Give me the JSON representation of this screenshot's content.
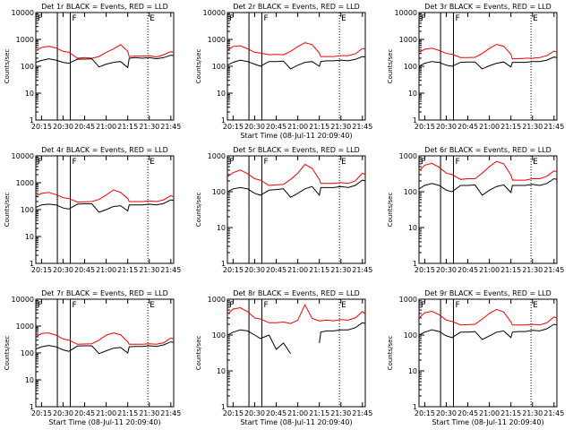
{
  "figure": {
    "background": "#ffffff",
    "axis_color": "#000000",
    "events_color": "#000000",
    "lld_color": "#ee0000"
  },
  "chart_data": [
    {
      "type": "line",
      "title": "Det 1r BLACK = Events, RED = LLD",
      "xlabel": "",
      "ylabel": "Counts/sec",
      "yscale": "log",
      "ylim": [
        1,
        10000
      ],
      "xlim": [
        "20:11",
        "21:47"
      ],
      "x_ticks": [
        "20:15",
        "20:30",
        "20:45",
        "21:00",
        "21:15",
        "21:30",
        "21:45"
      ],
      "y_ticks": [
        "1",
        "10",
        "100",
        "1000",
        "10000"
      ],
      "flags": [
        "F",
        "E"
      ],
      "x": [
        "20:11",
        "20:15",
        "20:20",
        "20:25",
        "20:30",
        "20:34",
        "20:40",
        "20:45",
        "20:50",
        "20:55",
        "21:00",
        "21:05",
        "21:10",
        "21:15",
        "21:16",
        "21:20",
        "21:25",
        "21:30",
        "21:35",
        "21:40",
        "21:45",
        "21:47"
      ],
      "series": [
        {
          "name": "RED = LLD",
          "values": [
            380,
            500,
            560,
            480,
            360,
            330,
            200,
            210,
            200,
            230,
            330,
            440,
            640,
            360,
            230,
            240,
            240,
            250,
            220,
            270,
            350,
            330
          ]
        },
        {
          "name": "BLACK = Events",
          "values": [
            140,
            165,
            190,
            170,
            140,
            130,
            185,
            185,
            190,
            95,
            120,
            140,
            150,
            90,
            200,
            210,
            200,
            210,
            190,
            210,
            260,
            250
          ]
        }
      ],
      "vlines_solid": [
        "20:26",
        "20:35"
      ],
      "vlines_dotted": [
        "20:26",
        "21:29"
      ]
    },
    {
      "type": "line",
      "title": "Det 2r BLACK = Events, RED = LLD",
      "xlabel": "Start Time (08-Jul-11 20:09:40)",
      "ylabel": "Counts/sec",
      "yscale": "log",
      "ylim": [
        1,
        10000
      ],
      "xlim": [
        "20:11",
        "21:47"
      ],
      "x_ticks": [
        "20:15",
        "20:30",
        "20:45",
        "21:00",
        "21:15",
        "21:30",
        "21:45"
      ],
      "y_ticks": [
        "1",
        "10",
        "100",
        "1000",
        "10000"
      ],
      "flags": [
        "F",
        "E"
      ],
      "x": [
        "20:11",
        "20:15",
        "20:20",
        "20:25",
        "20:30",
        "20:34",
        "20:40",
        "20:45",
        "20:50",
        "20:55",
        "21:00",
        "21:05",
        "21:10",
        "21:15",
        "21:16",
        "21:20",
        "21:25",
        "21:30",
        "21:35",
        "21:40",
        "21:45",
        "21:47"
      ],
      "series": [
        {
          "name": "RED = LLD",
          "values": [
            400,
            550,
            580,
            450,
            330,
            310,
            270,
            275,
            270,
            360,
            540,
            750,
            640,
            310,
            230,
            230,
            230,
            250,
            250,
            290,
            460,
            440
          ]
        },
        {
          "name": "BLACK = Events",
          "values": [
            110,
            140,
            170,
            150,
            120,
            100,
            150,
            150,
            155,
            80,
            110,
            140,
            150,
            100,
            150,
            160,
            160,
            170,
            160,
            180,
            230,
            220
          ]
        }
      ],
      "vlines_solid": [
        "20:26",
        "20:35"
      ],
      "vlines_dotted": [
        "20:26",
        "21:29"
      ]
    },
    {
      "type": "line",
      "title": "Det 3r BLACK = Events, RED = LLD",
      "xlabel": "",
      "ylabel": "Counts/sec",
      "yscale": "log",
      "ylim": [
        1,
        10000
      ],
      "xlim": [
        "20:11",
        "21:47"
      ],
      "x_ticks": [
        "20:15",
        "20:30",
        "20:45",
        "21:00",
        "21:15",
        "21:30",
        "21:45"
      ],
      "y_ticks": [
        "1",
        "10",
        "100",
        "1000",
        "10000"
      ],
      "flags": [
        "F",
        "E"
      ],
      "x": [
        "20:11",
        "20:15",
        "20:20",
        "20:25",
        "20:30",
        "20:34",
        "20:40",
        "20:45",
        "20:50",
        "20:55",
        "21:00",
        "21:05",
        "21:10",
        "21:15",
        "21:16",
        "21:20",
        "21:25",
        "21:30",
        "21:35",
        "21:40",
        "21:45",
        "21:47"
      ],
      "series": [
        {
          "name": "RED = LLD",
          "values": [
            330,
            430,
            470,
            390,
            300,
            280,
            210,
            210,
            215,
            300,
            460,
            650,
            560,
            280,
            190,
            190,
            200,
            200,
            210,
            250,
            370,
            340
          ]
        },
        {
          "name": "BLACK = Events",
          "values": [
            100,
            130,
            150,
            140,
            110,
            100,
            140,
            145,
            145,
            80,
            105,
            130,
            145,
            95,
            140,
            140,
            140,
            150,
            150,
            170,
            220,
            210
          ]
        }
      ],
      "vlines_solid": [
        "20:26",
        "20:35"
      ],
      "vlines_dotted": [
        "20:26",
        "21:29"
      ]
    },
    {
      "type": "line",
      "title": "Det 4r BLACK = Events, RED = LLD",
      "xlabel": "",
      "ylabel": "Counts/sec",
      "yscale": "log",
      "ylim": [
        1,
        10000
      ],
      "xlim": [
        "20:11",
        "21:47"
      ],
      "x_ticks": [
        "20:15",
        "20:30",
        "20:45",
        "21:00",
        "21:15",
        "21:30",
        "21:45"
      ],
      "y_ticks": [
        "1",
        "10",
        "100",
        "1000",
        "10000"
      ],
      "flags": [
        "F",
        "E"
      ],
      "x": [
        "20:11",
        "20:15",
        "20:20",
        "20:25",
        "20:30",
        "20:34",
        "20:40",
        "20:45",
        "20:50",
        "20:55",
        "21:00",
        "21:05",
        "21:10",
        "21:15",
        "21:16",
        "21:20",
        "21:25",
        "21:30",
        "21:35",
        "21:40",
        "21:45",
        "21:47"
      ],
      "series": [
        {
          "name": "RED = LLD",
          "values": [
            320,
            400,
            440,
            360,
            280,
            260,
            190,
            195,
            200,
            240,
            350,
            540,
            440,
            260,
            200,
            200,
            200,
            210,
            200,
            230,
            330,
            300
          ]
        },
        {
          "name": "BLACK = Events",
          "values": [
            120,
            150,
            160,
            150,
            115,
            105,
            160,
            165,
            165,
            80,
            100,
            130,
            140,
            90,
            150,
            150,
            150,
            160,
            150,
            170,
            230,
            220
          ]
        }
      ],
      "vlines_solid": [
        "20:26",
        "20:35"
      ],
      "vlines_dotted": [
        "20:26",
        "21:29"
      ]
    },
    {
      "type": "line",
      "title": "Det 5r BLACK = Events, RED = LLD",
      "xlabel": "",
      "ylabel": "Counts/sec",
      "yscale": "log",
      "ylim": [
        1,
        1000
      ],
      "xlim": [
        "20:11",
        "21:47"
      ],
      "x_ticks": [
        "20:15",
        "20:30",
        "20:45",
        "21:00",
        "21:15",
        "21:30",
        "21:45"
      ],
      "y_ticks": [
        "1",
        "10",
        "100",
        "1000"
      ],
      "flags": [
        "F",
        "E"
      ],
      "x": [
        "20:11",
        "20:15",
        "20:20",
        "20:25",
        "20:30",
        "20:34",
        "20:40",
        "20:45",
        "20:50",
        "20:55",
        "21:00",
        "21:05",
        "21:10",
        "21:15",
        "21:16",
        "21:20",
        "21:25",
        "21:30",
        "21:35",
        "21:40",
        "21:45",
        "21:47"
      ],
      "series": [
        {
          "name": "RED = LLD",
          "values": [
            260,
            340,
            400,
            320,
            230,
            210,
            150,
            155,
            160,
            220,
            330,
            580,
            450,
            220,
            170,
            170,
            170,
            180,
            170,
            200,
            330,
            300
          ]
        },
        {
          "name": "BLACK = Events",
          "values": [
            100,
            120,
            130,
            120,
            90,
            80,
            110,
            115,
            120,
            70,
            90,
            120,
            140,
            80,
            130,
            130,
            130,
            140,
            130,
            150,
            210,
            200
          ]
        }
      ],
      "vlines_solid": [
        "20:26",
        "20:35"
      ],
      "vlines_dotted": [
        "20:26",
        "21:29"
      ]
    },
    {
      "type": "line",
      "title": "Det 6r BLACK = Events, RED = LLD",
      "xlabel": "",
      "ylabel": "Counts/sec",
      "yscale": "log",
      "ylim": [
        1,
        1000
      ],
      "xlim": [
        "20:11",
        "21:47"
      ],
      "x_ticks": [
        "20:15",
        "20:30",
        "20:45",
        "21:00",
        "21:15",
        "21:30",
        "21:45"
      ],
      "y_ticks": [
        "1",
        "10",
        "100",
        "1000"
      ],
      "flags": [
        "F",
        "E"
      ],
      "x": [
        "20:11",
        "20:15",
        "20:20",
        "20:25",
        "20:30",
        "20:34",
        "20:40",
        "20:45",
        "20:50",
        "20:55",
        "21:00",
        "21:05",
        "21:10",
        "21:15",
        "21:16",
        "21:20",
        "21:25",
        "21:30",
        "21:35",
        "21:40",
        "21:45",
        "21:47"
      ],
      "series": [
        {
          "name": "RED = LLD",
          "values": [
            380,
            550,
            620,
            480,
            330,
            300,
            220,
            230,
            230,
            330,
            500,
            700,
            600,
            290,
            210,
            210,
            210,
            230,
            230,
            270,
            380,
            360
          ]
        },
        {
          "name": "BLACK = Events",
          "values": [
            120,
            150,
            170,
            150,
            110,
            100,
            150,
            150,
            155,
            80,
            110,
            140,
            155,
            95,
            150,
            150,
            150,
            160,
            150,
            170,
            230,
            220
          ]
        }
      ],
      "vlines_solid": [
        "20:26",
        "20:35"
      ],
      "vlines_dotted": [
        "20:26",
        "21:29"
      ]
    },
    {
      "type": "line",
      "title": "Det 7r BLACK = Events, RED = LLD",
      "xlabel": "Start Time (08-Jul-11 20:09:40)",
      "ylabel": "Counts/sec",
      "yscale": "log",
      "ylim": [
        1,
        10000
      ],
      "xlim": [
        "20:11",
        "21:47"
      ],
      "x_ticks": [
        "20:15",
        "20:30",
        "20:45",
        "21:00",
        "21:15",
        "21:30",
        "21:45"
      ],
      "y_ticks": [
        "1",
        "10",
        "100",
        "1000",
        "10000"
      ],
      "flags": [
        "F",
        "E"
      ],
      "x": [
        "20:11",
        "20:15",
        "20:20",
        "20:25",
        "20:30",
        "20:34",
        "20:40",
        "20:45",
        "20:50",
        "20:55",
        "21:00",
        "21:05",
        "21:10",
        "21:15",
        "21:16",
        "21:20",
        "21:25",
        "21:30",
        "21:35",
        "21:40",
        "21:45",
        "21:47"
      ],
      "series": [
        {
          "name": "RED = LLD",
          "values": [
            400,
            530,
            560,
            460,
            330,
            300,
            210,
            215,
            220,
            300,
            460,
            560,
            480,
            260,
            210,
            210,
            210,
            220,
            210,
            240,
            360,
            330
          ]
        },
        {
          "name": "BLACK = Events",
          "values": [
            140,
            170,
            190,
            170,
            130,
            115,
            180,
            185,
            185,
            95,
            120,
            150,
            160,
            100,
            170,
            175,
            175,
            185,
            175,
            200,
            260,
            250
          ]
        }
      ],
      "vlines_solid": [
        "20:26",
        "20:35"
      ],
      "vlines_dotted": [
        "20:26",
        "21:29"
      ]
    },
    {
      "type": "line",
      "title": "Det 8r BLACK = Events, RED = LLD",
      "xlabel": "Start Time (08-Jul-11 20:09:40)",
      "ylabel": "Counts/sec",
      "yscale": "log",
      "ylim": [
        1,
        1000
      ],
      "xlim": [
        "20:11",
        "21:47"
      ],
      "x_ticks": [
        "20:15",
        "20:30",
        "20:45",
        "21:00",
        "21:15",
        "21:30",
        "21:45"
      ],
      "y_ticks": [
        "1",
        "10",
        "100",
        "1000"
      ],
      "flags": [
        "F",
        "E"
      ],
      "x": [
        "20:11",
        "20:15",
        "20:20",
        "20:25",
        "20:30",
        "20:34",
        "20:40",
        "20:45",
        "20:50",
        "20:55",
        "21:00",
        "21:05",
        "21:10",
        "21:15",
        "21:16",
        "21:20",
        "21:25",
        "21:30",
        "21:35",
        "21:40",
        "21:45",
        "21:47"
      ],
      "series": [
        {
          "name": "RED = LLD",
          "values": [
            380,
            530,
            580,
            450,
            300,
            280,
            220,
            220,
            230,
            210,
            260,
            700,
            290,
            250,
            250,
            260,
            250,
            270,
            260,
            300,
            450,
            400
          ]
        },
        {
          "name": "BLACK = Events",
          "values": [
            100,
            120,
            140,
            130,
            100,
            80,
            100,
            40,
            60,
            30,
            null,
            null,
            null,
            60,
            120,
            130,
            130,
            140,
            140,
            160,
            220,
            210
          ]
        }
      ],
      "vlines_solid": [
        "20:26",
        "20:35"
      ],
      "vlines_dotted": [
        "20:26",
        "21:29"
      ]
    },
    {
      "type": "line",
      "title": "Det 9r BLACK = Events, RED = LLD",
      "xlabel": "Start Time (08-Jul-11 20:09:40)",
      "ylabel": "Counts/sec",
      "yscale": "log",
      "ylim": [
        1,
        1000
      ],
      "xlim": [
        "20:11",
        "21:47"
      ],
      "x_ticks": [
        "20:15",
        "20:30",
        "20:45",
        "21:00",
        "21:15",
        "21:30",
        "21:45"
      ],
      "y_ticks": [
        "1",
        "10",
        "100",
        "1000"
      ],
      "flags": [
        "F",
        "E"
      ],
      "x": [
        "20:11",
        "20:15",
        "20:20",
        "20:25",
        "20:30",
        "20:34",
        "20:40",
        "20:45",
        "20:50",
        "20:55",
        "21:00",
        "21:05",
        "21:10",
        "21:15",
        "21:16",
        "21:20",
        "21:25",
        "21:30",
        "21:35",
        "21:40",
        "21:45",
        "21:47"
      ],
      "series": [
        {
          "name": "RED = LLD",
          "values": [
            300,
            420,
            460,
            370,
            260,
            240,
            190,
            195,
            200,
            280,
            400,
            520,
            440,
            230,
            190,
            190,
            190,
            200,
            190,
            220,
            320,
            300
          ]
        },
        {
          "name": "BLACK = Events",
          "values": [
            100,
            120,
            140,
            125,
            95,
            85,
            120,
            120,
            125,
            75,
            95,
            120,
            130,
            85,
            120,
            125,
            125,
            135,
            130,
            150,
            200,
            190
          ]
        }
      ],
      "vlines_solid": [
        "20:26",
        "20:35"
      ],
      "vlines_dotted": [
        "20:26",
        "21:29"
      ]
    }
  ]
}
